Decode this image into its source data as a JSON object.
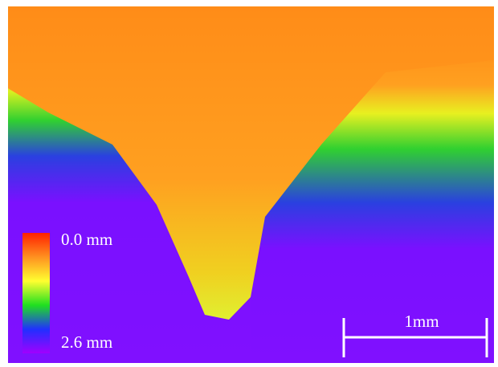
{
  "colorbar": {
    "top_label": "0.0 mm",
    "bottom_label": "2.6 mm"
  },
  "scale_bar": {
    "label": "1mm"
  }
}
